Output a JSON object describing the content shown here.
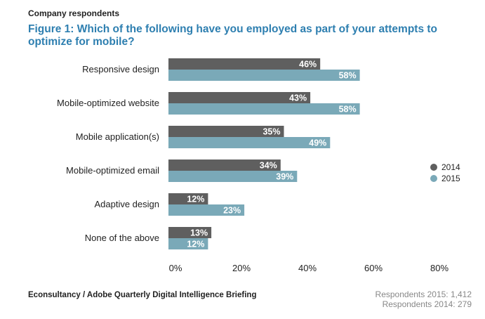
{
  "header": {
    "kicker": "Company respondents",
    "title": "Figure 1: Which of the following have you employed as part of your attempts to optimize for mobile?"
  },
  "footer": {
    "source": "Econsultancy / Adobe Quarterly Digital Intelligence Briefing",
    "respondents_2015": "Respondents 2015: 1,412",
    "respondents_2014": "Respondents 2014: 279"
  },
  "chart_data": {
    "type": "bar",
    "orientation": "horizontal",
    "categories": [
      "Responsive design",
      "Mobile-optimized website",
      "Mobile application(s)",
      "Mobile-optimized email",
      "Adaptive design",
      "None of the above"
    ],
    "series": [
      {
        "name": "2014",
        "values": [
          46,
          43,
          35,
          34,
          12,
          13
        ],
        "color": "#5f5f5f"
      },
      {
        "name": "2015",
        "values": [
          58,
          58,
          49,
          39,
          23,
          12
        ],
        "color": "#7aa9b8"
      }
    ],
    "value_suffix": "%",
    "xlim": [
      0,
      80
    ],
    "xticks": [
      0,
      20,
      40,
      60,
      80
    ],
    "xtick_labels": [
      "0%",
      "20%",
      "40%",
      "60%",
      "80%"
    ],
    "grid": false,
    "legend_position": "right"
  }
}
